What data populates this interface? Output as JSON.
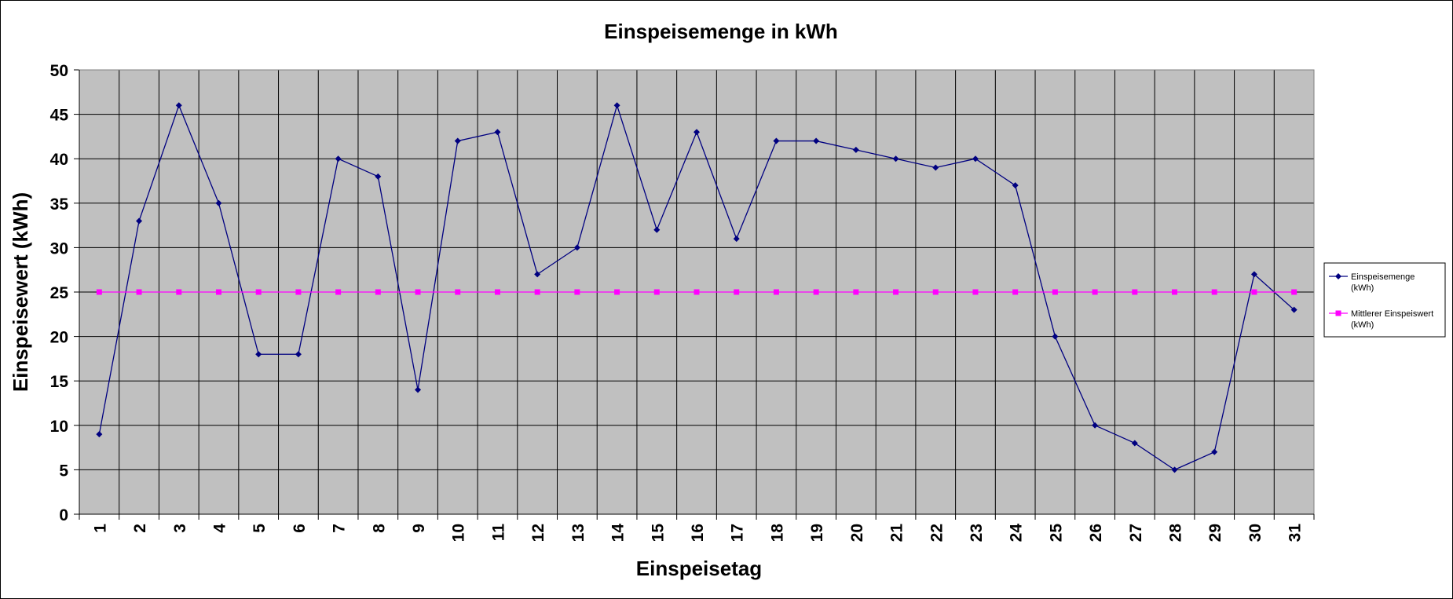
{
  "chart_data": {
    "type": "line",
    "title": "Einspeisemenge in kWh",
    "xlabel": "Einspeisetag",
    "ylabel": "Einspeisewert  (kWh)",
    "categories": [
      "1",
      "2",
      "3",
      "4",
      "5",
      "6",
      "7",
      "8",
      "9",
      "10",
      "11",
      "12",
      "13",
      "14",
      "15",
      "16",
      "17",
      "18",
      "19",
      "20",
      "21",
      "22",
      "23",
      "24",
      "25",
      "26",
      "27",
      "28",
      "29",
      "30",
      "31"
    ],
    "ylim": [
      0,
      50
    ],
    "yticks": [
      "0",
      "5",
      "10",
      "15",
      "20",
      "25",
      "30",
      "35",
      "40",
      "45",
      "50"
    ],
    "grid": true,
    "legend_position": "right",
    "series": [
      {
        "name_lines": [
          "Einspeisemenge",
          "(kWh)"
        ],
        "color": "#000080",
        "marker": "diamond",
        "values": [
          9,
          33,
          46,
          35,
          18,
          18,
          40,
          38,
          14,
          42,
          43,
          27,
          30,
          46,
          32,
          43,
          31,
          42,
          42,
          41,
          40,
          39,
          40,
          37,
          20,
          10,
          8,
          5,
          7,
          27,
          23
        ]
      },
      {
        "name_lines": [
          "Mittlerer Einspeiswert",
          "(kWh)"
        ],
        "color": "#ff00ff",
        "marker": "square",
        "values": [
          25,
          25,
          25,
          25,
          25,
          25,
          25,
          25,
          25,
          25,
          25,
          25,
          25,
          25,
          25,
          25,
          25,
          25,
          25,
          25,
          25,
          25,
          25,
          25,
          25,
          25,
          25,
          25,
          25,
          25,
          25
        ]
      }
    ],
    "plot_background": "#c0c0c0"
  }
}
